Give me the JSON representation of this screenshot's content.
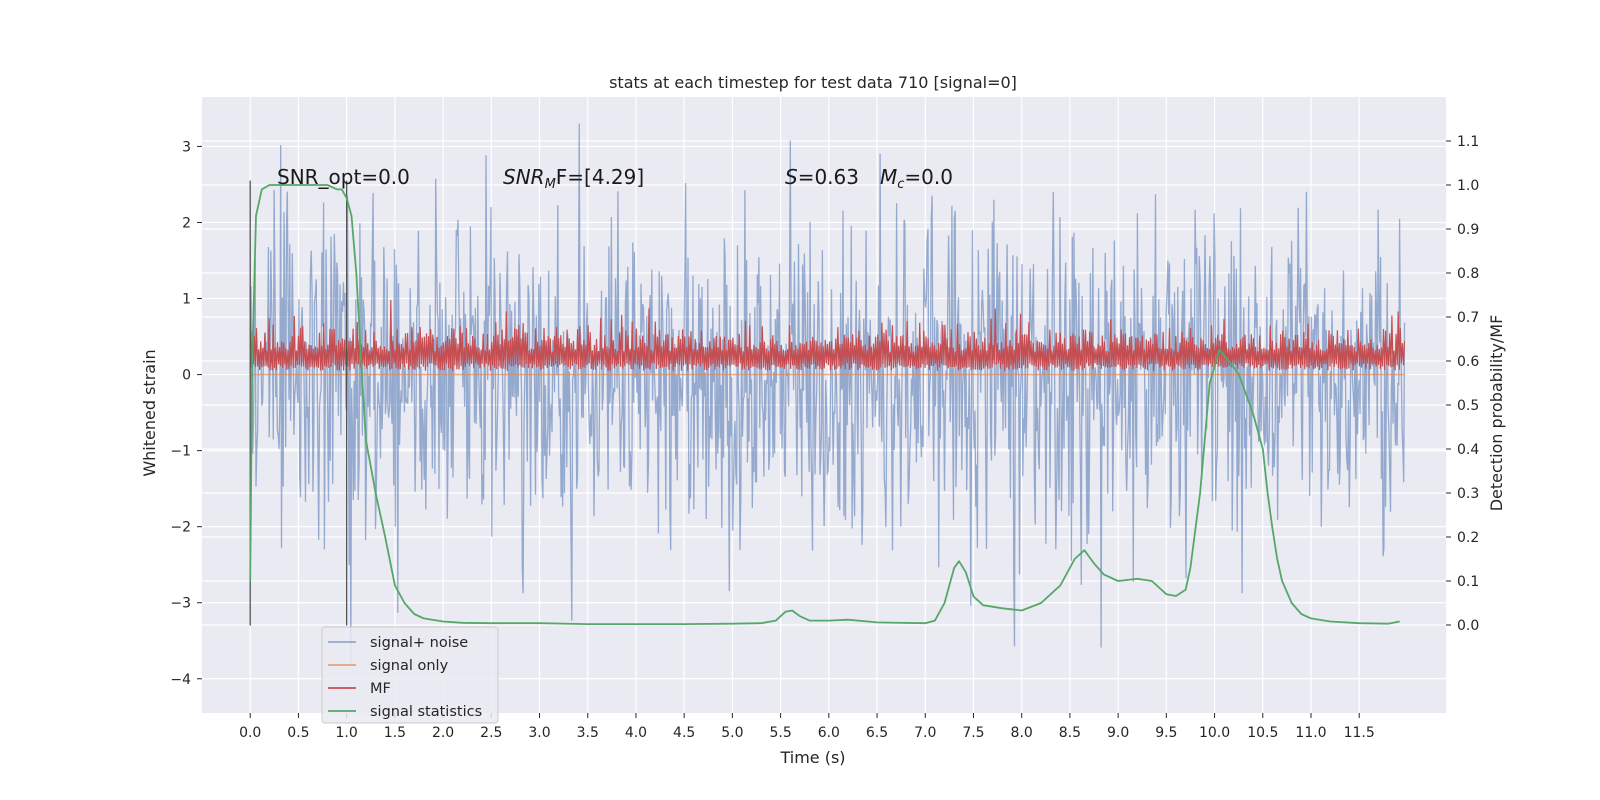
{
  "chart_data": {
    "type": "line",
    "title": "stats at each timestep for test data 710 [signal=0]",
    "xlabel": "Time (s)",
    "ylabel_left": "Whitened strain",
    "ylabel_right": "Detection probability/MF",
    "xlim": [
      -0.5,
      12.4
    ],
    "ylim_left": [
      -4.45,
      3.65
    ],
    "ylim_right": [
      -0.2,
      1.2
    ],
    "x_ticks": [
      "0.0",
      "0.5",
      "1.0",
      "1.5",
      "2.0",
      "2.5",
      "3.0",
      "3.5",
      "4.0",
      "4.5",
      "5.0",
      "5.5",
      "6.0",
      "6.5",
      "7.0",
      "7.5",
      "8.0",
      "8.5",
      "9.0",
      "9.5",
      "10.0",
      "10.5",
      "11.0",
      "11.5"
    ],
    "y_left_ticks": [
      "3",
      "2",
      "1",
      "0",
      "−1",
      "−2",
      "−3",
      "−4"
    ],
    "y_right_ticks": [
      "1.1",
      "1.0",
      "0.9",
      "0.8",
      "0.7",
      "0.6",
      "0.5",
      "0.4",
      "0.3",
      "0.2",
      "0.1",
      "0.0"
    ],
    "grid": true,
    "legend_position": "bottom-left",
    "annotations": {
      "snr_opt": "SNR_opt=0.0",
      "snr_mf": "SNR",
      "snr_mf_sub": "M",
      "snr_mf_rest": "F=[4.29]",
      "s_label": "S",
      "s_value": "=0.63",
      "mc_label": "M",
      "mc_sub": "c",
      "mc_value": "=0.0"
    },
    "vertical_markers": [
      0.0,
      1.0
    ],
    "series": [
      {
        "name": "signal+ noise",
        "color": "#4c72b0",
        "style": "dense noise, approx. 1.0 std, range about -4.1 to 3.3",
        "values_summary": {
          "x_start": 0.0,
          "x_end": 11.97,
          "min": -4.1,
          "max": 3.3
        }
      },
      {
        "name": "signal only",
        "color": "#dd8452",
        "values_summary": {
          "x_start": 0.0,
          "x_end": 11.97,
          "value": 0.0
        }
      },
      {
        "name": "MF",
        "color": "#c44e52",
        "style": "dense band between 0 and ~0.75, peaks ~1.0",
        "values_summary": {
          "x_start": 0.0,
          "x_end": 11.97,
          "min": 0.0,
          "max": 1.0
        }
      },
      {
        "name": "signal statistics",
        "color": "#55a868",
        "axis": "right",
        "x": [
          0.0,
          0.02,
          0.06,
          0.12,
          0.2,
          0.3,
          0.5,
          0.7,
          0.8,
          0.9,
          0.95,
          1.0,
          1.05,
          1.1,
          1.15,
          1.2,
          1.25,
          1.3,
          1.4,
          1.5,
          1.6,
          1.7,
          1.8,
          2.0,
          2.2,
          2.5,
          3.0,
          3.5,
          4.0,
          4.5,
          5.0,
          5.3,
          5.45,
          5.55,
          5.62,
          5.7,
          5.8,
          6.0,
          6.2,
          6.5,
          7.0,
          7.1,
          7.2,
          7.3,
          7.35,
          7.42,
          7.5,
          7.6,
          7.8,
          8.0,
          8.2,
          8.4,
          8.55,
          8.65,
          8.75,
          8.85,
          9.0,
          9.2,
          9.35,
          9.5,
          9.6,
          9.7,
          9.75,
          9.85,
          9.95,
          10.05,
          10.15,
          10.25,
          10.4,
          10.5,
          10.55,
          10.6,
          10.65,
          10.7,
          10.8,
          10.9,
          11.0,
          11.2,
          11.5,
          11.8,
          11.92
        ],
        "y": [
          0.1,
          0.58,
          0.93,
          0.99,
          1.0,
          1.0,
          1.0,
          1.0,
          1.0,
          0.99,
          0.99,
          0.97,
          0.93,
          0.8,
          0.6,
          0.42,
          0.36,
          0.3,
          0.2,
          0.09,
          0.05,
          0.025,
          0.015,
          0.008,
          0.005,
          0.004,
          0.004,
          0.002,
          0.002,
          0.002,
          0.003,
          0.004,
          0.01,
          0.03,
          0.033,
          0.02,
          0.01,
          0.01,
          0.012,
          0.006,
          0.004,
          0.01,
          0.05,
          0.13,
          0.145,
          0.12,
          0.065,
          0.045,
          0.038,
          0.033,
          0.05,
          0.09,
          0.15,
          0.17,
          0.14,
          0.115,
          0.1,
          0.105,
          0.1,
          0.07,
          0.066,
          0.08,
          0.13,
          0.3,
          0.55,
          0.625,
          0.6,
          0.57,
          0.48,
          0.4,
          0.3,
          0.22,
          0.15,
          0.1,
          0.05,
          0.025,
          0.015,
          0.008,
          0.004,
          0.003,
          0.008
        ]
      }
    ]
  }
}
